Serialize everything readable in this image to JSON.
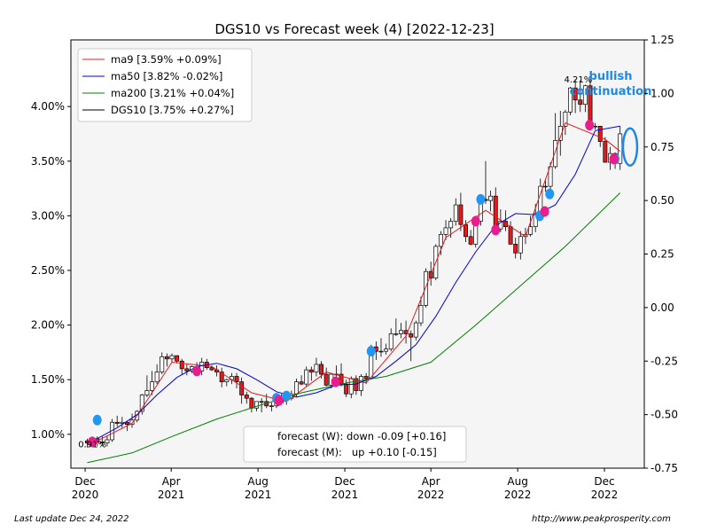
{
  "chart_data": {
    "type": "line",
    "title": "DGS10 vs Forecast week (4) [2022-12-23]",
    "x_ticks": [
      {
        "label": [
          "Dec",
          "2020"
        ],
        "x": "2020-12"
      },
      {
        "label": [
          "Apr",
          "2021"
        ],
        "x": "2021-04"
      },
      {
        "label": [
          "Aug",
          "2021"
        ],
        "x": "2021-08"
      },
      {
        "label": [
          "Dec",
          "2021"
        ],
        "x": "2021-12"
      },
      {
        "label": [
          "Apr",
          "2022"
        ],
        "x": "2022-04"
      },
      {
        "label": [
          "Aug",
          "2022"
        ],
        "x": "2022-08"
      },
      {
        "label": [
          "Dec",
          "2022"
        ],
        "x": "2022-12"
      }
    ],
    "xlim": [
      "2020-11-11",
      "2023-01-26"
    ],
    "y_left": {
      "ylim": [
        0.69,
        4.61
      ],
      "ticks": [
        "1.00%",
        "1.50%",
        "2.00%",
        "2.50%",
        "3.00%",
        "3.50%",
        "4.00%"
      ],
      "values": [
        1.0,
        1.5,
        2.0,
        2.5,
        3.0,
        3.5,
        4.0
      ]
    },
    "y_right": {
      "ylim": [
        -0.75,
        1.25
      ],
      "ticks": [
        "-0.75",
        "-0.50",
        "-0.25",
        "0.00",
        "0.25",
        "0.50",
        "0.75",
        "1.00",
        "1.25"
      ],
      "values": [
        -0.75,
        -0.5,
        -0.25,
        0.0,
        0.25,
        0.5,
        0.75,
        1.0,
        1.25
      ]
    },
    "legend_position": "upper left",
    "legend": [
      {
        "label": "ma9 [3.59% +0.09%]",
        "color": "#e41a1c"
      },
      {
        "label": "ma50 [3.82% -0.02%]",
        "color": "#0000dd"
      },
      {
        "label": "ma200 [3.21% +0.04%]",
        "color": "#008000"
      },
      {
        "label": "DGS10 [3.75% +0.27%]",
        "color": "#000000"
      }
    ],
    "series": [
      {
        "name": "DGS10",
        "type": "candlestick",
        "x": [
          "2020-12-04",
          "2020-12-11",
          "2020-12-18",
          "2020-12-25",
          "2021-01-01",
          "2021-01-08",
          "2021-01-15",
          "2021-01-22",
          "2021-01-29",
          "2021-02-05",
          "2021-02-12",
          "2021-02-19",
          "2021-02-26",
          "2021-03-05",
          "2021-03-12",
          "2021-03-19",
          "2021-03-26",
          "2021-04-02",
          "2021-04-09",
          "2021-04-16",
          "2021-04-23",
          "2021-04-30",
          "2021-05-07",
          "2021-05-14",
          "2021-05-21",
          "2021-05-28",
          "2021-06-04",
          "2021-06-11",
          "2021-06-18",
          "2021-06-25",
          "2021-07-02",
          "2021-07-09",
          "2021-07-16",
          "2021-07-23",
          "2021-07-30",
          "2021-08-06",
          "2021-08-13",
          "2021-08-20",
          "2021-08-27",
          "2021-09-03",
          "2021-09-10",
          "2021-09-17",
          "2021-09-24",
          "2021-10-01",
          "2021-10-08",
          "2021-10-15",
          "2021-10-22",
          "2021-10-29",
          "2021-11-05",
          "2021-11-12",
          "2021-11-19",
          "2021-11-26",
          "2021-12-03",
          "2021-12-10",
          "2021-12-17",
          "2021-12-24",
          "2021-12-31",
          "2022-01-07",
          "2022-01-14",
          "2022-01-21",
          "2022-01-28",
          "2022-02-04",
          "2022-02-11",
          "2022-02-18",
          "2022-02-25",
          "2022-03-04",
          "2022-03-11",
          "2022-03-18",
          "2022-03-25",
          "2022-04-01",
          "2022-04-08",
          "2022-04-15",
          "2022-04-22",
          "2022-04-29",
          "2022-05-06",
          "2022-05-13",
          "2022-05-20",
          "2022-05-27",
          "2022-06-03",
          "2022-06-10",
          "2022-06-17",
          "2022-06-24",
          "2022-07-01",
          "2022-07-08",
          "2022-07-15",
          "2022-07-22",
          "2022-07-29",
          "2022-08-05",
          "2022-08-12",
          "2022-08-19",
          "2022-08-26",
          "2022-09-02",
          "2022-09-09",
          "2022-09-16",
          "2022-09-23",
          "2022-09-30",
          "2022-10-07",
          "2022-10-14",
          "2022-10-21",
          "2022-10-28",
          "2022-11-04",
          "2022-11-11",
          "2022-11-18",
          "2022-11-25",
          "2022-12-02",
          "2022-12-09",
          "2022-12-16",
          "2022-12-23"
        ],
        "open": [
          0.94,
          0.92,
          0.96,
          0.93,
          0.92,
          0.95,
          1.11,
          1.1,
          1.11,
          1.09,
          1.13,
          1.21,
          1.36,
          1.4,
          1.48,
          1.57,
          1.71,
          1.69,
          1.72,
          1.67,
          1.6,
          1.58,
          1.62,
          1.58,
          1.66,
          1.61,
          1.59,
          1.57,
          1.48,
          1.5,
          1.53,
          1.48,
          1.36,
          1.33,
          1.24,
          1.3,
          1.3,
          1.26,
          1.26,
          1.29,
          1.32,
          1.33,
          1.37,
          1.48,
          1.46,
          1.59,
          1.57,
          1.64,
          1.55,
          1.45,
          1.55,
          1.55,
          1.46,
          1.37,
          1.51,
          1.4,
          1.53,
          1.51,
          1.8,
          1.76,
          1.76,
          1.78,
          1.92,
          1.92,
          1.95,
          1.92,
          1.89,
          2.02,
          2.18,
          2.49,
          2.43,
          2.72,
          2.83,
          2.89,
          2.95,
          3.1,
          2.92,
          2.81,
          2.74,
          2.95,
          3.15,
          3.14,
          3.18,
          2.88,
          2.95,
          2.9,
          2.74,
          2.66,
          2.81,
          2.83,
          2.9,
          3.02,
          3.27,
          3.27,
          3.45,
          3.69,
          3.82,
          3.95,
          4.17,
          4.06,
          4.02,
          4.19,
          3.82,
          3.82,
          3.68,
          3.49,
          3.57,
          3.48
        ],
        "high": [
          0.96,
          0.97,
          0.98,
          0.98,
          0.99,
          1.14,
          1.17,
          1.16,
          1.12,
          1.19,
          1.22,
          1.37,
          1.54,
          1.58,
          1.64,
          1.75,
          1.74,
          1.74,
          1.72,
          1.69,
          1.64,
          1.63,
          1.66,
          1.7,
          1.69,
          1.63,
          1.63,
          1.61,
          1.51,
          1.56,
          1.56,
          1.52,
          1.39,
          1.34,
          1.3,
          1.33,
          1.37,
          1.29,
          1.3,
          1.37,
          1.38,
          1.4,
          1.51,
          1.54,
          1.62,
          1.62,
          1.7,
          1.67,
          1.61,
          1.56,
          1.63,
          1.65,
          1.5,
          1.53,
          1.54,
          1.55,
          1.56,
          1.82,
          1.85,
          1.88,
          1.83,
          1.97,
          2.06,
          2.02,
          2.04,
          1.95,
          2.04,
          2.26,
          2.52,
          2.58,
          2.74,
          2.86,
          2.96,
          2.98,
          3.16,
          3.21,
          2.96,
          2.87,
          3.0,
          3.17,
          3.5,
          3.23,
          3.26,
          3.06,
          3.05,
          2.95,
          2.8,
          2.86,
          2.89,
          3.0,
          3.11,
          3.34,
          3.34,
          3.49,
          3.94,
          3.96,
          3.97,
          4.18,
          4.25,
          4.24,
          4.2,
          4.26,
          3.85,
          3.82,
          3.72,
          3.63,
          3.58,
          3.82
        ],
        "low": [
          0.88,
          0.88,
          0.89,
          0.89,
          0.89,
          0.93,
          1.07,
          1.06,
          1.03,
          1.06,
          1.11,
          1.18,
          1.34,
          1.36,
          1.46,
          1.55,
          1.62,
          1.66,
          1.65,
          1.55,
          1.54,
          1.56,
          1.56,
          1.54,
          1.59,
          1.58,
          1.53,
          1.43,
          1.44,
          1.46,
          1.42,
          1.28,
          1.28,
          1.2,
          1.21,
          1.2,
          1.24,
          1.21,
          1.24,
          1.27,
          1.27,
          1.31,
          1.34,
          1.45,
          1.44,
          1.49,
          1.53,
          1.51,
          1.44,
          1.42,
          1.49,
          1.44,
          1.34,
          1.33,
          1.36,
          1.35,
          1.46,
          1.5,
          1.68,
          1.71,
          1.73,
          1.76,
          1.9,
          1.88,
          1.83,
          1.67,
          1.86,
          1.99,
          2.16,
          2.36,
          2.41,
          2.64,
          2.78,
          2.8,
          2.91,
          2.86,
          2.76,
          2.73,
          2.71,
          2.91,
          3.11,
          3.04,
          2.88,
          2.85,
          2.86,
          2.75,
          2.61,
          2.6,
          2.74,
          2.81,
          2.85,
          2.98,
          3.22,
          3.23,
          3.43,
          3.55,
          3.74,
          3.92,
          3.94,
          3.95,
          3.95,
          3.81,
          3.79,
          3.63,
          3.5,
          3.42,
          3.43,
          3.42
        ],
        "close": [
          0.92,
          0.96,
          0.93,
          0.92,
          0.95,
          1.11,
          1.1,
          1.11,
          1.09,
          1.13,
          1.21,
          1.36,
          1.4,
          1.48,
          1.57,
          1.71,
          1.69,
          1.72,
          1.67,
          1.6,
          1.58,
          1.62,
          1.58,
          1.66,
          1.61,
          1.59,
          1.57,
          1.48,
          1.5,
          1.53,
          1.48,
          1.36,
          1.33,
          1.24,
          1.3,
          1.3,
          1.26,
          1.26,
          1.29,
          1.32,
          1.33,
          1.37,
          1.48,
          1.46,
          1.59,
          1.57,
          1.64,
          1.55,
          1.45,
          1.55,
          1.55,
          1.46,
          1.37,
          1.51,
          1.4,
          1.53,
          1.51,
          1.8,
          1.76,
          1.76,
          1.78,
          1.92,
          1.92,
          1.95,
          1.92,
          1.89,
          2.02,
          2.18,
          2.49,
          2.43,
          2.72,
          2.83,
          2.89,
          2.95,
          3.1,
          2.92,
          2.81,
          2.74,
          2.95,
          3.15,
          3.14,
          3.18,
          2.88,
          2.95,
          2.9,
          2.74,
          2.66,
          2.81,
          2.83,
          2.9,
          3.02,
          3.27,
          3.27,
          3.45,
          3.69,
          3.82,
          3.95,
          4.17,
          4.06,
          4.02,
          4.19,
          3.82,
          3.82,
          3.68,
          3.49,
          3.57,
          3.48,
          3.75
        ]
      },
      {
        "name": "ma9",
        "color": "#e41a1c",
        "x": [
          "2020-12-18",
          "2021-02-05",
          "2021-04-02",
          "2021-05-28",
          "2021-07-23",
          "2021-09-10",
          "2021-11-05",
          "2021-12-31",
          "2022-02-25",
          "2022-04-22",
          "2022-06-17",
          "2022-08-12",
          "2022-10-07",
          "2022-12-02",
          "2022-12-23"
        ],
        "y": [
          0.94,
          1.1,
          1.66,
          1.62,
          1.38,
          1.3,
          1.57,
          1.47,
          1.9,
          2.8,
          3.05,
          2.81,
          3.85,
          3.7,
          3.59
        ]
      },
      {
        "name": "ma50",
        "color": "#0000dd",
        "x": [
          "2020-12-18",
          "2021-01-15",
          "2021-02-12",
          "2021-03-12",
          "2021-04-09",
          "2021-05-07",
          "2021-06-04",
          "2021-07-02",
          "2021-07-30",
          "2021-08-27",
          "2021-09-24",
          "2021-10-22",
          "2021-11-19",
          "2021-12-17",
          "2022-01-14",
          "2022-02-11",
          "2022-03-11",
          "2022-04-08",
          "2022-05-06",
          "2022-06-03",
          "2022-07-01",
          "2022-07-29",
          "2022-08-26",
          "2022-09-23",
          "2022-10-21",
          "2022-11-18",
          "2022-12-23"
        ],
        "y": [
          0.96,
          1.06,
          1.18,
          1.36,
          1.52,
          1.62,
          1.65,
          1.6,
          1.5,
          1.39,
          1.34,
          1.38,
          1.45,
          1.46,
          1.53,
          1.67,
          1.82,
          2.08,
          2.39,
          2.67,
          2.91,
          3.02,
          3.01,
          3.1,
          3.38,
          3.78,
          3.82
        ]
      },
      {
        "name": "ma200",
        "color": "#008000",
        "x": [
          "2020-12-04",
          "2021-02-05",
          "2021-04-02",
          "2021-06-04",
          "2021-08-06",
          "2021-10-01",
          "2021-12-03",
          "2022-01-28",
          "2022-04-01",
          "2022-06-03",
          "2022-08-05",
          "2022-10-07",
          "2022-12-23"
        ],
        "y": [
          0.74,
          0.83,
          0.98,
          1.14,
          1.27,
          1.38,
          1.47,
          1.53,
          1.66,
          2.0,
          2.36,
          2.72,
          3.21
        ]
      }
    ],
    "markers": [
      {
        "color": "#2196f3",
        "x": "2020-12-18",
        "y": 1.13
      },
      {
        "color": "#e91e8c",
        "x": "2020-12-11",
        "y": 0.93
      },
      {
        "color": "#e91e8c",
        "x": "2021-05-07",
        "y": 1.58
      },
      {
        "color": "#2196f3",
        "x": "2021-08-27",
        "y": 1.33
      },
      {
        "color": "#2196f3",
        "x": "2021-09-10",
        "y": 1.35
      },
      {
        "color": "#e91e8c",
        "x": "2021-08-30",
        "y": 1.31
      },
      {
        "color": "#e91e8c",
        "x": "2021-11-18",
        "y": 1.48
      },
      {
        "color": "#2196f3",
        "x": "2022-01-07",
        "y": 1.76
      },
      {
        "color": "#e91e8c",
        "x": "2022-06-03",
        "y": 2.95
      },
      {
        "color": "#2196f3",
        "x": "2022-06-10",
        "y": 3.15
      },
      {
        "color": "#e91e8c",
        "x": "2022-07-01",
        "y": 2.87
      },
      {
        "color": "#2196f3",
        "x": "2022-09-01",
        "y": 3.0
      },
      {
        "color": "#e91e8c",
        "x": "2022-09-08",
        "y": 3.04
      },
      {
        "color": "#2196f3",
        "x": "2022-09-15",
        "y": 3.2
      },
      {
        "color": "#e91e8c",
        "x": "2022-11-10",
        "y": 3.83
      },
      {
        "color": "#2196f3",
        "x": "2022-12-16",
        "y": 3.52
      },
      {
        "color": "#e91e8c",
        "x": "2022-12-14",
        "y": 3.52
      }
    ],
    "annotations": [
      {
        "text": "0.91%",
        "x": "2020-12-11",
        "y": 0.88
      },
      {
        "text": "4.21%",
        "x": "2022-10-25",
        "y": 4.22
      }
    ],
    "callout": {
      "lines": [
        "bullish",
        "continuation"
      ],
      "color": "#1e88e5"
    },
    "ellipse": {
      "x": "2023-01-06",
      "y": 3.63
    },
    "forecast_box": {
      "lines": [
        "forecast (W): down -0.09 [+0.16]",
        "forecast (M):   up +0.10 [-0.15]"
      ]
    }
  },
  "footer": {
    "left": "Last update Dec 24, 2022",
    "right": "http://www.peakprosperity.com"
  }
}
